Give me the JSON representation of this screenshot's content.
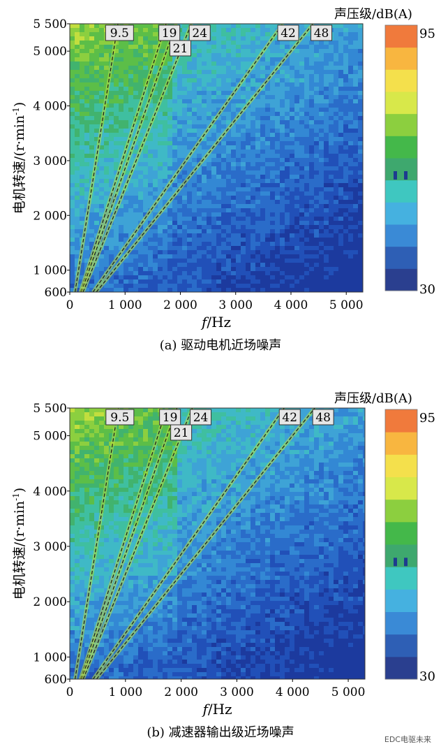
{
  "chart_data": [
    {
      "type": "heatmap",
      "id": "a",
      "caption": "(a)  驱动电机近场噪声",
      "xlabel_var": "f",
      "xlabel_unit": "/Hz",
      "ylabel": "电机转速/(r·min",
      "ylabel_sup": "-1",
      "ylabel_close": ")",
      "xlim": [
        0,
        5300
      ],
      "ylim": [
        600,
        5500
      ],
      "x_ticks": [
        {
          "value": 0,
          "label": "0"
        },
        {
          "value": 1000,
          "label": "1 000"
        },
        {
          "value": 2000,
          "label": "2 000"
        },
        {
          "value": 3000,
          "label": "3 000"
        },
        {
          "value": 4000,
          "label": "4 000"
        },
        {
          "value": 5000,
          "label": "5 000"
        }
      ],
      "y_ticks": [
        {
          "value": 600,
          "label": "600"
        },
        {
          "value": 1000,
          "label": "1 000"
        },
        {
          "value": 2000,
          "label": "2 000"
        },
        {
          "value": 3000,
          "label": "3 000"
        },
        {
          "value": 4000,
          "label": "4 000"
        },
        {
          "value": 5000,
          "label": "5 000"
        },
        {
          "value": 5500,
          "label": "5 500"
        }
      ],
      "orders": [
        "9.5",
        "19",
        "21",
        "24",
        "42",
        "48"
      ],
      "colorbar": {
        "title": "声压级/dB(A)",
        "min": "30",
        "max": "95"
      }
    },
    {
      "type": "heatmap",
      "id": "b",
      "caption": "(b)  减速器输出级近场噪声",
      "xlabel_var": "f",
      "xlabel_unit": "/Hz",
      "ylabel": "电机转速/(r·min",
      "ylabel_sup": "-1",
      "ylabel_close": ")",
      "xlim": [
        0,
        5300
      ],
      "ylim": [
        600,
        5500
      ],
      "x_ticks": [
        {
          "value": 0,
          "label": "0"
        },
        {
          "value": 1000,
          "label": "1 000"
        },
        {
          "value": 2000,
          "label": "2 000"
        },
        {
          "value": 3000,
          "label": "3 000"
        },
        {
          "value": 4000,
          "label": "4 000"
        },
        {
          "value": 5000,
          "label": "5 000"
        }
      ],
      "y_ticks": [
        {
          "value": 600,
          "label": "600"
        },
        {
          "value": 1000,
          "label": "1 000"
        },
        {
          "value": 2000,
          "label": "2 000"
        },
        {
          "value": 3000,
          "label": "3 000"
        },
        {
          "value": 4000,
          "label": "4 000"
        },
        {
          "value": 5000,
          "label": "5 000"
        },
        {
          "value": 5500,
          "label": "5 500"
        }
      ],
      "orders": [
        "9.5",
        "19",
        "21",
        "24",
        "42",
        "48"
      ],
      "colorbar": {
        "title": "声压级/dB(A)",
        "min": "30",
        "max": "95"
      }
    }
  ],
  "colorbar_colors": [
    "#2a3f8f",
    "#2e5fb5",
    "#3a8ad6",
    "#45b1e0",
    "#3fc7c0",
    "#3ea86e",
    "#44b84a",
    "#8ccf3f",
    "#d8e84a",
    "#f4e04c",
    "#f8b640",
    "#f07a3c"
  ],
  "watermark": "EDC电驱未来"
}
